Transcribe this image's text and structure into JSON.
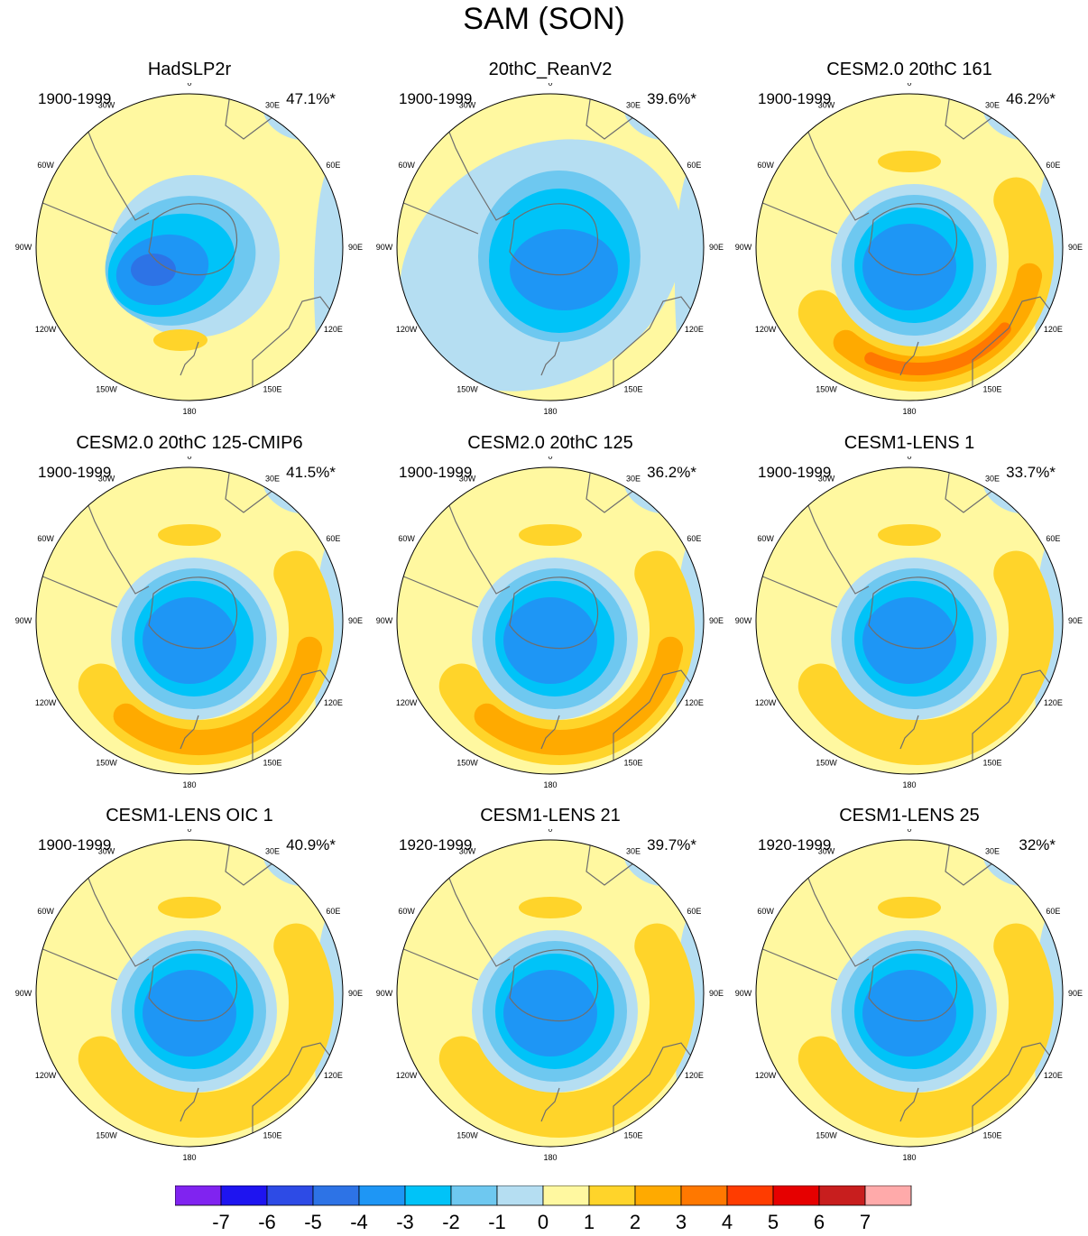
{
  "title": "SAM (SON)",
  "colors": {
    "land_outline": "#6e6e6e",
    "frame": "#000000",
    "levels": [
      "#8023f0",
      "#1e14f0",
      "#2d4be6",
      "#2d73e6",
      "#1e96f5",
      "#00c3f8",
      "#6ec8f0",
      "#b5def2",
      "#fff8a0",
      "#ffd42a",
      "#ffaa00",
      "#ff7800",
      "#ff3c00",
      "#e60000",
      "#c81e1e",
      "#ffaaaa"
    ]
  },
  "longitude_labels": [
    "0",
    "30E",
    "60E",
    "90E",
    "120E",
    "150E",
    "180",
    "150W",
    "120W",
    "90W",
    "60W",
    "30W"
  ],
  "colorbar": {
    "labels": [
      "-7",
      "-6",
      "-5",
      "-4",
      "-3",
      "-2",
      "-1",
      "0",
      "1",
      "2",
      "3",
      "4",
      "5",
      "6",
      "7"
    ]
  },
  "panels": [
    {
      "title": "HadSLP2r",
      "years": "1900-1999",
      "pct": "47.1%*",
      "min_level": -5,
      "pattern": "had"
    },
    {
      "title": "20thC_ReanV2",
      "years": "1900-1999",
      "pct": "39.6%*",
      "min_level": -4,
      "pattern": "rean"
    },
    {
      "title": "CESM2.0 20thC 161",
      "years": "1900-1999",
      "pct": "46.2%*",
      "min_level": -4,
      "max_level": 3,
      "pattern": "model"
    },
    {
      "title": "CESM2.0 20thC 125-CMIP6",
      "years": "1900-1999",
      "pct": "41.5%*",
      "min_level": -4,
      "max_level": 2,
      "pattern": "model"
    },
    {
      "title": "CESM2.0 20thC 125",
      "years": "1900-1999",
      "pct": "36.2%*",
      "min_level": -4,
      "max_level": 2,
      "pattern": "model"
    },
    {
      "title": "CESM1-LENS 1",
      "years": "1900-1999",
      "pct": "33.7%*",
      "min_level": -4,
      "max_level": 1,
      "pattern": "model"
    },
    {
      "title": "CESM1-LENS OIC 1",
      "years": "1900-1999",
      "pct": "40.9%*",
      "min_level": -4,
      "max_level": 1,
      "pattern": "model"
    },
    {
      "title": "CESM1-LENS 21",
      "years": "1920-1999",
      "pct": "39.7%*",
      "min_level": -4,
      "max_level": 1,
      "pattern": "model"
    },
    {
      "title": "CESM1-LENS 25",
      "years": "1920-1999",
      "pct": "32%*",
      "min_level": -4,
      "max_level": 1,
      "pattern": "model"
    }
  ]
}
